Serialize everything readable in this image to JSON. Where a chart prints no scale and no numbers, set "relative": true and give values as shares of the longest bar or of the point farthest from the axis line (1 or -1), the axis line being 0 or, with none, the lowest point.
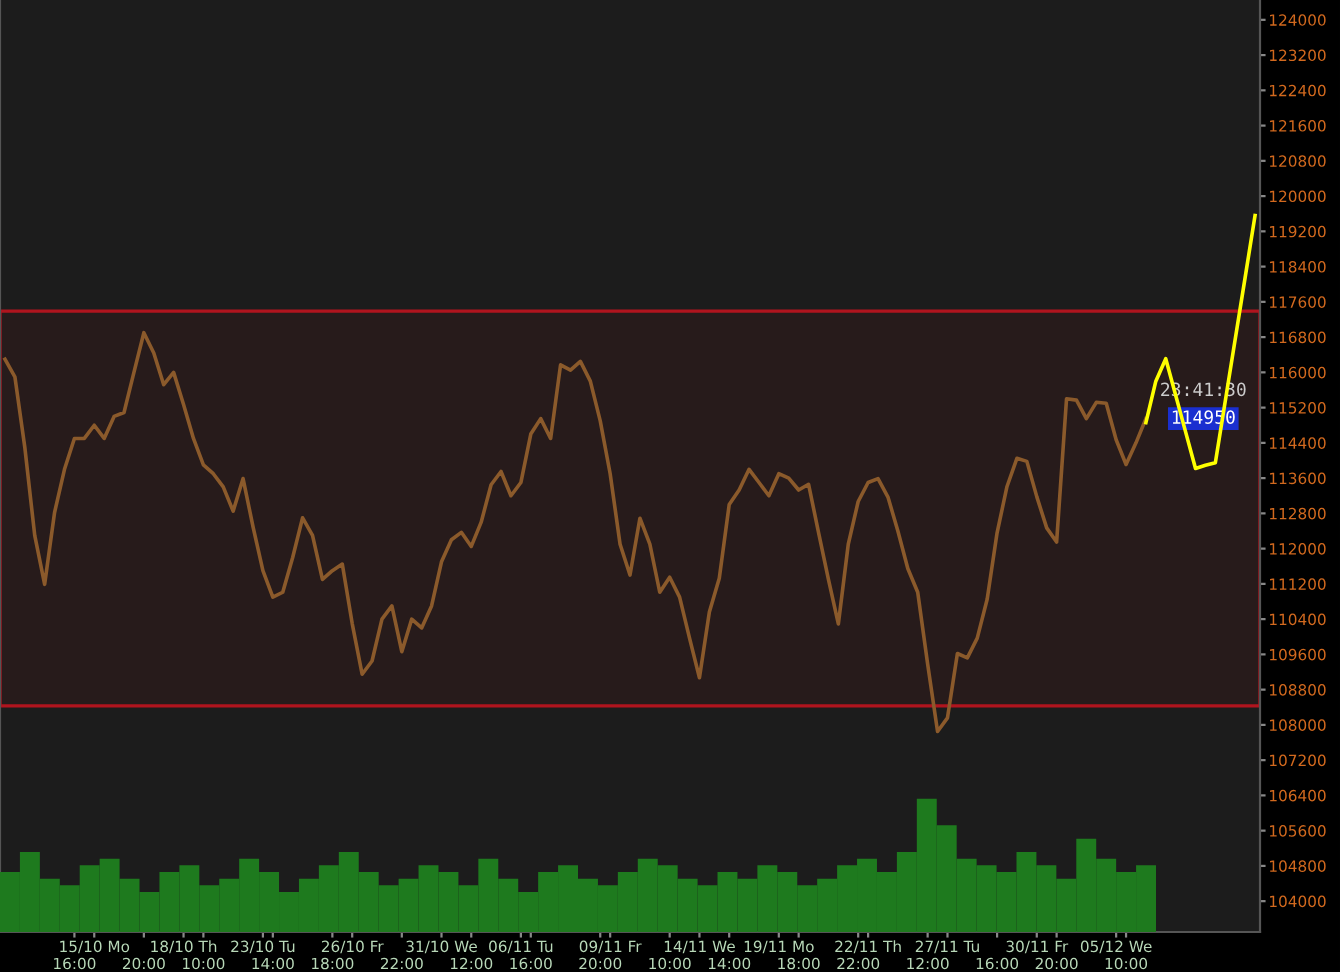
{
  "chart_data": [
    {
      "type": "line",
      "categories": [
        null,
        null,
        null,
        null,
        null,
        null,
        null,
        "\n16:00",
        null,
        "15/10 Mo",
        null,
        null,
        null,
        null,
        "\n20:00",
        null,
        null,
        null,
        "18/10 Th",
        null,
        "\n10:00",
        null,
        null,
        null,
        null,
        null,
        "23/10 Tu",
        "\n14:00",
        null,
        null,
        null,
        null,
        null,
        "\n18:00",
        null,
        "26/10 Fr",
        null,
        null,
        null,
        null,
        "\n22:00",
        null,
        null,
        null,
        "31/10 We",
        null,
        null,
        "\n12:00",
        null,
        null,
        null,
        null,
        "06/11 Tu",
        "\n16:00",
        null,
        null,
        null,
        null,
        null,
        null,
        "\n20:00",
        "09/11 Fr",
        null,
        null,
        null,
        null,
        null,
        "\n10:00",
        null,
        null,
        "14/11 We",
        null,
        null,
        "\n14:00",
        null,
        null,
        null,
        null,
        "19/11 Mo",
        null,
        "\n18:00",
        null,
        null,
        null,
        null,
        null,
        "\n22:00",
        "22/11 Th",
        null,
        null,
        null,
        null,
        null,
        "\n12:00",
        null,
        "27/11 Tu",
        null,
        null,
        null,
        null,
        "\n16:00",
        null,
        null,
        null,
        "30/11 Fr",
        null,
        "\n20:00",
        null,
        null,
        null,
        null,
        null,
        "05/12 We",
        "\n10:00",
        null,
        null,
        null,
        null,
        null,
        null,
        null,
        null,
        null,
        null,
        null,
        null,
        null
      ],
      "series": [
        {
          "color": "#8b5a2b",
          "values": [
            116300,
            115900,
            114300,
            112300,
            111190,
            112820,
            113800,
            114500,
            114500,
            114800,
            114500,
            115000,
            115090,
            116000,
            116900,
            116440,
            115720,
            116000,
            115270,
            114500,
            113900,
            113700,
            113400,
            112850,
            113590,
            112500,
            111500,
            110900,
            111010,
            111800,
            112700,
            112300,
            111300,
            111500,
            111650,
            110300,
            109150,
            109450,
            110400,
            110700,
            109660,
            110400,
            110200,
            110700,
            111700,
            112200,
            112370,
            112050,
            112600,
            113450,
            113750,
            113200,
            113500,
            114600,
            114950,
            114500,
            116170,
            116050,
            116250,
            115800,
            114900,
            113700,
            112100,
            111400,
            112690,
            112100,
            111010,
            111350,
            110900,
            109970,
            109070,
            110560,
            111330,
            113000,
            113330,
            113800,
            113500,
            113200,
            113700,
            113600,
            113330,
            113460,
            112370,
            111300,
            110290,
            112100,
            113070,
            113500,
            113590,
            113170,
            112400,
            111550,
            111010,
            109380,
            107850,
            108160,
            109620,
            109520,
            109970,
            110850,
            112360,
            113410,
            114050,
            113980,
            113180,
            112470,
            112150,
            115400,
            115370,
            114950,
            115320,
            115300,
            114470,
            113910,
            114400,
            114950,
            null,
            null,
            null,
            null,
            null,
            null,
            null,
            null,
            null,
            null,
            null
          ]
        },
        {
          "color": "#ffff00",
          "values": [
            null,
            null,
            null,
            null,
            null,
            null,
            null,
            null,
            null,
            null,
            null,
            null,
            null,
            null,
            null,
            null,
            null,
            null,
            null,
            null,
            null,
            null,
            null,
            null,
            null,
            null,
            null,
            null,
            null,
            null,
            null,
            null,
            null,
            null,
            null,
            null,
            null,
            null,
            null,
            null,
            null,
            null,
            null,
            null,
            null,
            null,
            null,
            null,
            null,
            null,
            null,
            null,
            null,
            null,
            null,
            null,
            null,
            null,
            null,
            null,
            null,
            null,
            null,
            null,
            null,
            null,
            null,
            null,
            null,
            null,
            null,
            null,
            null,
            null,
            null,
            null,
            null,
            null,
            null,
            null,
            null,
            null,
            null,
            null,
            null,
            null,
            null,
            null,
            null,
            null,
            null,
            null,
            null,
            null,
            null,
            null,
            null,
            null,
            null,
            null,
            null,
            null,
            null,
            null,
            null,
            null,
            null,
            null,
            null,
            null,
            null,
            null,
            null,
            null,
            null,
            114860,
            115800,
            116310,
            115480,
            114650,
            113820,
            113890,
            113950,
            115350,
            116750,
            118150,
            119560
          ]
        }
      ],
      "ylim": [
        103300,
        124450
      ],
      "yticks": [
        104000,
        104800,
        105600,
        106400,
        107200,
        108000,
        108800,
        109600,
        110400,
        111200,
        112000,
        112800,
        113600,
        114400,
        115200,
        116000,
        116800,
        117600,
        118400,
        119200,
        120000,
        120800,
        121600,
        122400,
        123200,
        124000
      ],
      "bands": [
        {
          "axis": "y",
          "from": 108430,
          "to": 117390,
          "color": "#b0141e"
        }
      ],
      "annotations": [
        {
          "text": "114950",
          "y": 114950
        },
        "23:41:30"
      ],
      "grid": false,
      "legend": false
    },
    {
      "type": "bar",
      "relative": true,
      "color": "#1e7a1e",
      "categories": [
        null,
        null,
        null,
        null,
        null,
        null,
        null,
        null,
        null,
        null,
        null,
        null,
        null,
        null,
        null,
        null,
        null,
        null,
        null,
        null,
        null,
        null,
        null,
        null,
        null,
        null,
        null,
        null,
        null,
        null,
        null,
        null,
        null,
        null,
        null,
        null,
        null,
        null,
        null,
        null,
        null,
        null,
        null,
        null,
        null,
        null,
        null,
        null,
        null,
        null,
        null,
        null,
        null,
        null,
        null,
        null,
        null,
        null
      ],
      "values": [
        0.45,
        0.6,
        0.4,
        0.35,
        0.5,
        0.55,
        0.4,
        0.3,
        0.45,
        0.5,
        0.35,
        0.4,
        0.55,
        0.45,
        0.3,
        0.4,
        0.5,
        0.6,
        0.45,
        0.35,
        0.4,
        0.5,
        0.45,
        0.35,
        0.55,
        0.4,
        0.3,
        0.45,
        0.5,
        0.4,
        0.35,
        0.45,
        0.55,
        0.5,
        0.4,
        0.35,
        0.45,
        0.4,
        0.5,
        0.45,
        0.35,
        0.4,
        0.5,
        0.55,
        0.45,
        0.6,
        1.0,
        0.8,
        0.55,
        0.5,
        0.45,
        0.6,
        0.5,
        0.4,
        0.7,
        0.55,
        0.45,
        0.5
      ]
    }
  ]
}
